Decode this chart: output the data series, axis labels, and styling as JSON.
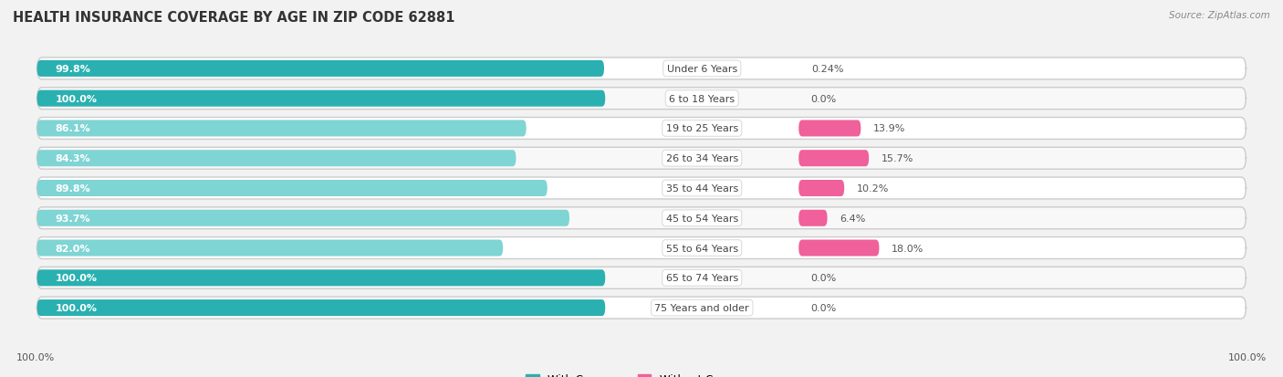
{
  "title": "HEALTH INSURANCE COVERAGE BY AGE IN ZIP CODE 62881",
  "source": "Source: ZipAtlas.com",
  "categories": [
    "Under 6 Years",
    "6 to 18 Years",
    "19 to 25 Years",
    "26 to 34 Years",
    "35 to 44 Years",
    "45 to 54 Years",
    "55 to 64 Years",
    "65 to 74 Years",
    "75 Years and older"
  ],
  "with_coverage": [
    99.8,
    100.0,
    86.1,
    84.3,
    89.8,
    93.7,
    82.0,
    100.0,
    100.0
  ],
  "without_coverage": [
    0.24,
    0.0,
    13.9,
    15.7,
    10.2,
    6.4,
    18.0,
    0.0,
    0.0
  ],
  "with_coverage_labels": [
    "99.8%",
    "100.0%",
    "86.1%",
    "84.3%",
    "89.8%",
    "93.7%",
    "82.0%",
    "100.0%",
    "100.0%"
  ],
  "without_coverage_labels": [
    "0.24%",
    "0.0%",
    "13.9%",
    "15.7%",
    "10.2%",
    "6.4%",
    "18.0%",
    "0.0%",
    "0.0%"
  ],
  "color_with_dark": "#2ab0b0",
  "color_with_light": "#7fd4d4",
  "color_without_dark": "#f0609a",
  "color_without_light": "#f4aac8",
  "bg_color": "#f2f2f2",
  "row_bg": "#e8e8e8",
  "row_white": "#ffffff",
  "title_fontsize": 10.5,
  "label_fontsize": 8.0,
  "legend_fontsize": 8.5,
  "axis_label_fontsize": 8.0,
  "bar_height": 0.55,
  "with_coverage_threshold": 95.0,
  "without_coverage_threshold": 5.0
}
